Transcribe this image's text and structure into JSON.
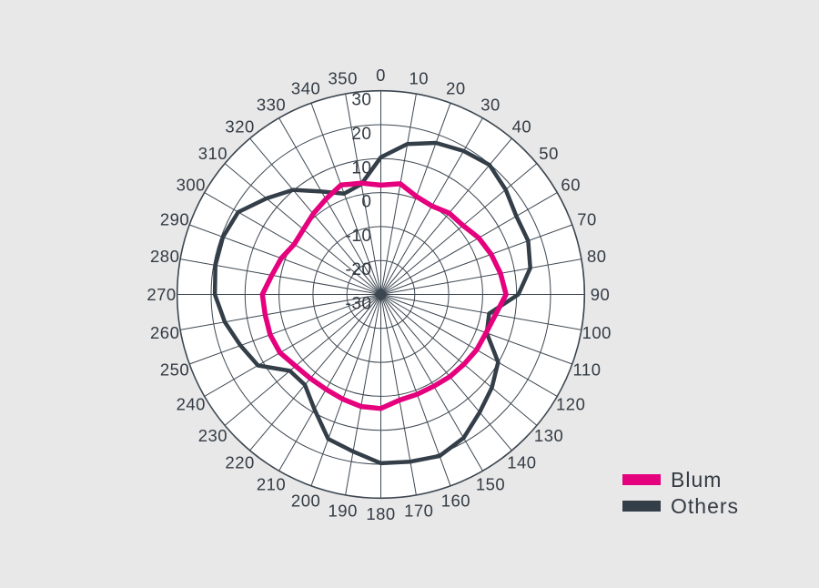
{
  "colors": {
    "background": "#e8e8e8",
    "plot_fill": "#ffffff",
    "grid": "#3d4751",
    "text": "#333b44"
  },
  "chart_data": {
    "type": "polar-line",
    "title": "",
    "angle_unit": "degrees",
    "angle_step_deg": 10,
    "angle_labels": [
      "0",
      "10",
      "20",
      "30",
      "40",
      "50",
      "60",
      "70",
      "80",
      "90",
      "100",
      "110",
      "120",
      "130",
      "140",
      "150",
      "160",
      "170",
      "180",
      "190",
      "200",
      "210",
      "220",
      "230",
      "240",
      "250",
      "260",
      "270",
      "280",
      "290",
      "300",
      "310",
      "320",
      "330",
      "340",
      "350"
    ],
    "radial_axis": {
      "min": -30,
      "max": 30,
      "tick_step": 10,
      "tick_values": [
        30,
        20,
        10,
        0,
        -10,
        -20,
        -30
      ],
      "tick_labels": [
        "30",
        "20",
        "10",
        "0",
        "-10",
        "-20",
        "-30"
      ]
    },
    "grid": {
      "rings": [
        -20,
        -10,
        0,
        10,
        20,
        30
      ],
      "spokes_every_deg": 10
    },
    "series": [
      {
        "name": "Blum",
        "color": "#e5007d",
        "line_width": 5.5,
        "values": [
          2.2,
          3.1,
          0.7,
          0.1,
          1.3,
          1.6,
          3.3,
          4.6,
          5.8,
          6.9,
          4.3,
          3.0,
          2.6,
          2.0,
          1.6,
          1.2,
          1.3,
          1.6,
          3.6,
          3.5,
          2.8,
          2.3,
          2.3,
          2.8,
          4.3,
          4.7,
          4.6,
          4.9,
          2.6,
          1.2,
          -0.5,
          -0.2,
          1.0,
          2.4,
          4.3,
          3.3
        ]
      },
      {
        "name": "Others",
        "color": "#333e48",
        "line_width": 4.5,
        "values": [
          10.4,
          15.0,
          17.5,
          18.8,
          19.8,
          18.0,
          16.1,
          16.2,
          14.7,
          10.5,
          2.4,
          3.2,
          9.9,
          12.7,
          15.3,
          18.8,
          20.6,
          20.0,
          19.7,
          17.0,
          15.3,
          9.1,
          4.8,
          5.0,
          11.8,
          14.0,
          16.7,
          18.9,
          19.5,
          19.5,
          18.5,
          14.0,
          10.2,
          5.0,
          1.6,
          3.0
        ]
      }
    ],
    "legend": {
      "position": "bottom-right",
      "entries": [
        "Blum",
        "Others"
      ]
    }
  }
}
